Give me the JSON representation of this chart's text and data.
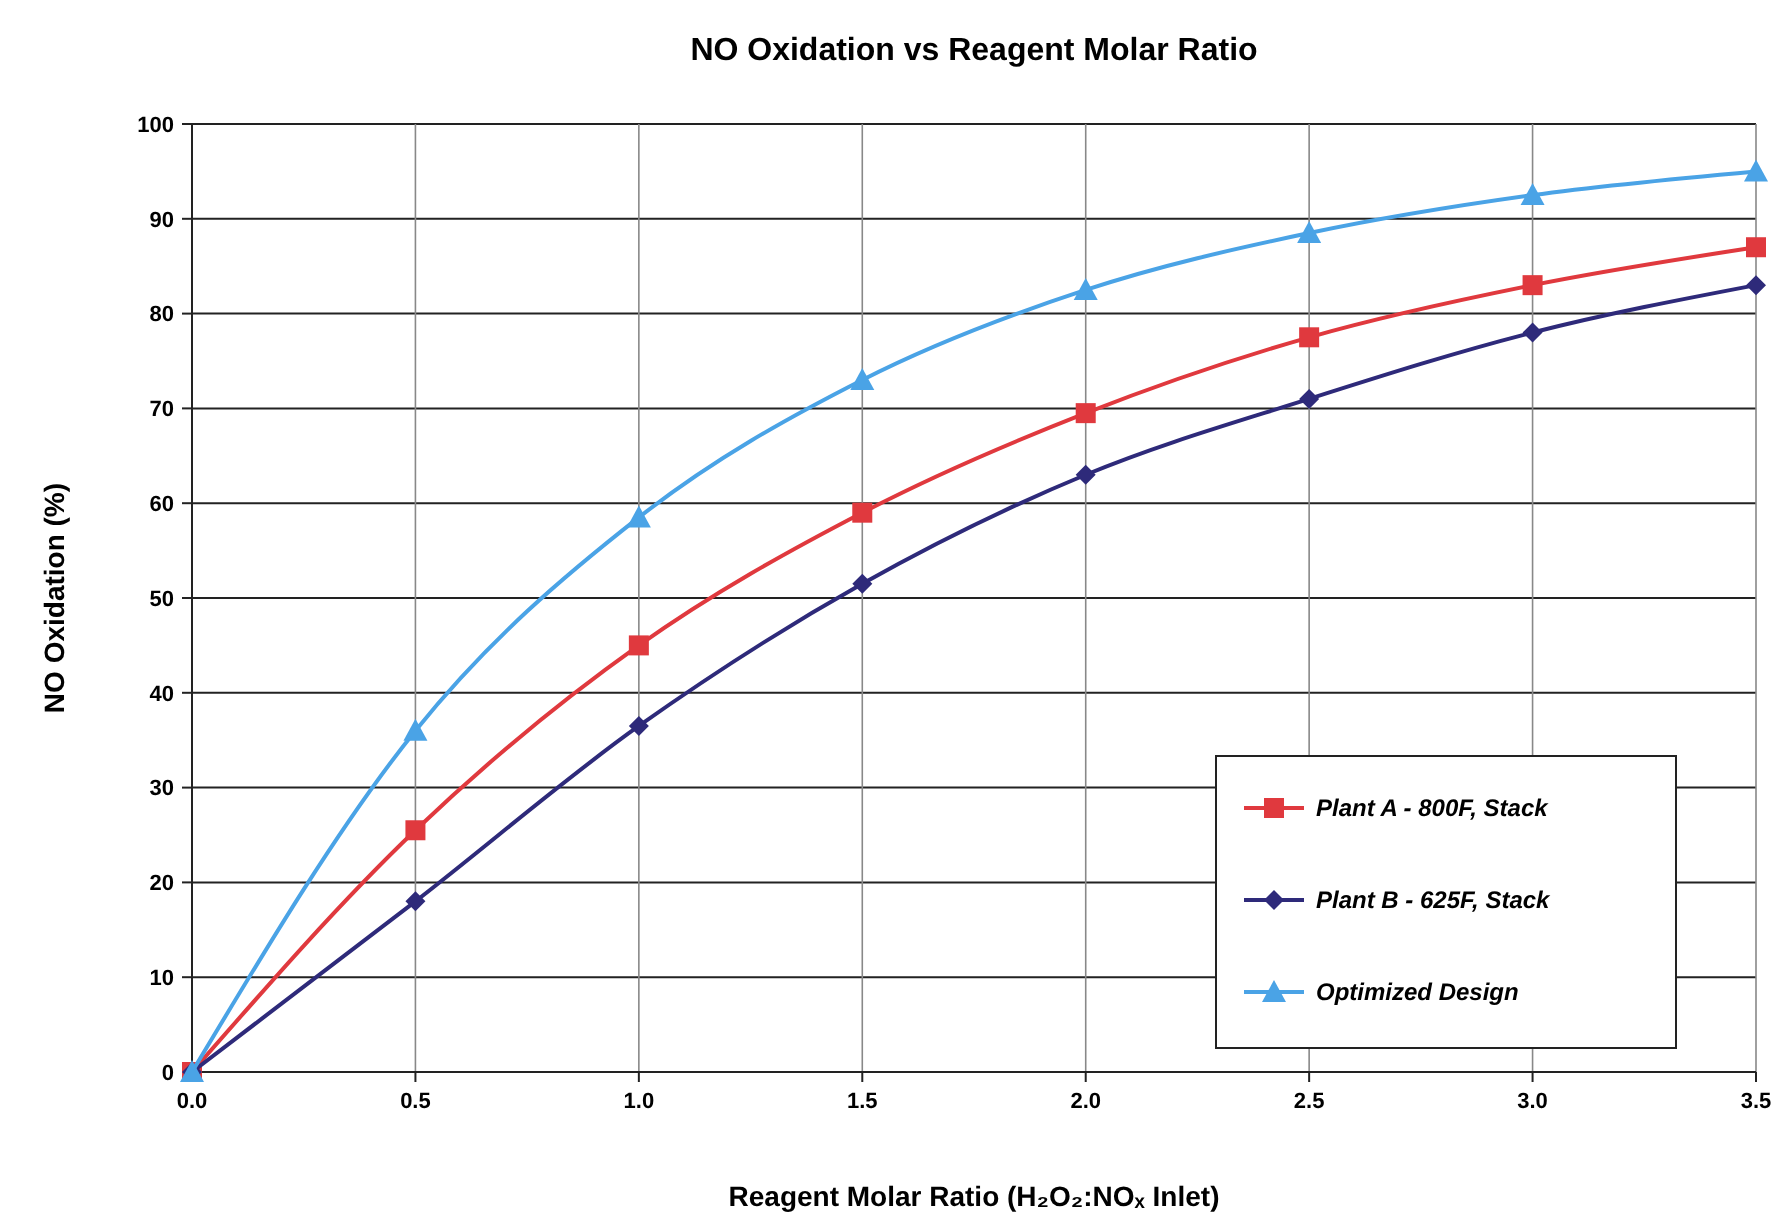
{
  "chart_data": {
    "type": "line",
    "title": "NO Oxidation vs Reagent Molar Ratio",
    "xlabel": "Reagent Molar Ratio (H₂O₂:NOₓ Inlet)",
    "ylabel": "NO Oxidation (%)",
    "x": [
      0,
      0.5,
      1,
      1.5,
      2,
      2.5,
      3,
      3.5
    ],
    "series": [
      {
        "name": "Plant A - 800F, Stack",
        "color": "#e0393e",
        "marker": "square",
        "values": [
          0,
          25.5,
          45,
          59,
          69.5,
          77.5,
          83,
          87
        ]
      },
      {
        "name": "Plant B - 625F, Stack",
        "color": "#2e2a7a",
        "marker": "diamond",
        "values": [
          0,
          18,
          36.5,
          51.5,
          63,
          71,
          78,
          83
        ]
      },
      {
        "name": "Optimized Design",
        "color": "#4aa3e6",
        "marker": "triangle",
        "values": [
          0,
          36,
          58.5,
          73,
          82.5,
          88.5,
          92.5,
          95
        ]
      }
    ],
    "xlim": [
      0,
      3.5
    ],
    "ylim": [
      0,
      100
    ],
    "xticks": [
      {
        "value": 0,
        "label": "0.0"
      },
      {
        "value": 0.5,
        "label": "0.5"
      },
      {
        "value": 1,
        "label": "1.0"
      },
      {
        "value": 1.5,
        "label": "1.5"
      },
      {
        "value": 2,
        "label": "2.0"
      },
      {
        "value": 2.5,
        "label": "2.5"
      },
      {
        "value": 3,
        "label": "3.0"
      },
      {
        "value": 3.5,
        "label": "3.5"
      }
    ],
    "yticks": [
      0,
      10,
      20,
      30,
      40,
      50,
      60,
      70,
      80,
      90,
      100
    ],
    "grid": true,
    "legend": "bottom right",
    "line_style": "solid"
  }
}
